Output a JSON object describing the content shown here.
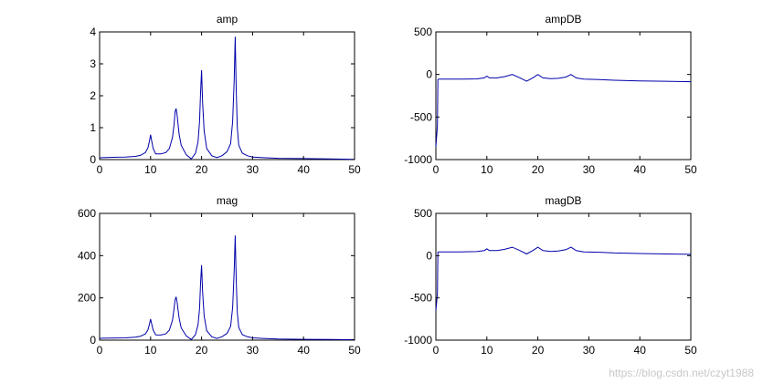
{
  "chart_data": [
    {
      "type": "line",
      "title": "amp",
      "xlim": [
        0,
        50
      ],
      "ylim": [
        0,
        4
      ],
      "xticks": [
        0,
        10,
        20,
        30,
        40,
        50
      ],
      "yticks": [
        0,
        1,
        2,
        3,
        4
      ],
      "grid": false,
      "series": [
        {
          "color": "#0000aa",
          "x": [
            0,
            0.5,
            2,
            5,
            7,
            8,
            9,
            9.5,
            9.8,
            10,
            10.2,
            10.5,
            11,
            12,
            13,
            13.7,
            14.3,
            14.6,
            14.8,
            15,
            15.2,
            15.6,
            16,
            17,
            18,
            18.8,
            19.3,
            19.6,
            19.8,
            20,
            20.2,
            20.5,
            21,
            22,
            23,
            24,
            25,
            25.7,
            26.1,
            26.4,
            26.6,
            26.8,
            27,
            27.3,
            28,
            29,
            30,
            32,
            35,
            40,
            45,
            50
          ],
          "y": [
            0.05,
            0.06,
            0.07,
            0.08,
            0.1,
            0.13,
            0.22,
            0.38,
            0.6,
            0.78,
            0.6,
            0.35,
            0.18,
            0.18,
            0.22,
            0.35,
            0.7,
            1.1,
            1.5,
            1.6,
            1.4,
            0.8,
            0.45,
            0.15,
            0.02,
            0.2,
            0.55,
            1.2,
            2.1,
            2.8,
            1.8,
            0.9,
            0.35,
            0.12,
            0.06,
            0.12,
            0.25,
            0.5,
            1.2,
            2.5,
            3.85,
            2.2,
            1.0,
            0.45,
            0.2,
            0.12,
            0.08,
            0.06,
            0.04,
            0.03,
            0.02,
            0.01
          ]
        }
      ]
    },
    {
      "type": "line",
      "title": "ampDB",
      "xlim": [
        0,
        50
      ],
      "ylim": [
        -1000,
        500
      ],
      "xticks": [
        0,
        10,
        20,
        30,
        40,
        50
      ],
      "yticks": [
        -1000,
        -500,
        0,
        500
      ],
      "grid": false,
      "series": [
        {
          "color": "#0000aa",
          "x": [
            0,
            0.3,
            0.4,
            0.6,
            2,
            5,
            8,
            9.5,
            10,
            10.5,
            12,
            13.5,
            15,
            16.5,
            17.8,
            19,
            20,
            21,
            22.5,
            24,
            25.5,
            26.5,
            27.5,
            29,
            32,
            35,
            40,
            45,
            50
          ],
          "y": [
            -850,
            -600,
            -60,
            -55,
            -55,
            -55,
            -52,
            -40,
            -20,
            -40,
            -40,
            -25,
            0,
            -40,
            -80,
            -40,
            0,
            -40,
            -50,
            -45,
            -30,
            0,
            -40,
            -55,
            -60,
            -68,
            -75,
            -80,
            -85
          ]
        }
      ]
    },
    {
      "type": "line",
      "title": "mag",
      "xlim": [
        0,
        50
      ],
      "ylim": [
        0,
        600
      ],
      "xticks": [
        0,
        10,
        20,
        30,
        40,
        50
      ],
      "yticks": [
        0,
        200,
        400,
        600
      ],
      "grid": false,
      "series": [
        {
          "color": "#0000aa",
          "x": [
            0,
            0.5,
            2,
            5,
            7,
            8,
            9,
            9.5,
            9.8,
            10,
            10.2,
            10.5,
            11,
            12,
            13,
            13.7,
            14.3,
            14.6,
            14.8,
            15,
            15.2,
            15.6,
            16,
            17,
            18,
            18.8,
            19.3,
            19.6,
            19.8,
            20,
            20.2,
            20.5,
            21,
            22,
            23,
            24,
            25,
            25.7,
            26.1,
            26.4,
            26.6,
            26.8,
            27,
            27.3,
            28,
            29,
            30,
            32,
            35,
            40,
            45,
            50
          ],
          "y": [
            8,
            9,
            10,
            11,
            14,
            18,
            30,
            50,
            78,
            100,
            78,
            48,
            25,
            24,
            30,
            48,
            95,
            150,
            190,
            205,
            180,
            105,
            58,
            20,
            3,
            26,
            72,
            150,
            270,
            355,
            230,
            115,
            45,
            16,
            8,
            16,
            32,
            65,
            155,
            330,
            495,
            285,
            130,
            60,
            26,
            16,
            11,
            8,
            5,
            4,
            3,
            2
          ]
        }
      ]
    },
    {
      "type": "line",
      "title": "magDB",
      "xlim": [
        0,
        50
      ],
      "ylim": [
        -1000,
        500
      ],
      "xticks": [
        0,
        10,
        20,
        30,
        40,
        50
      ],
      "yticks": [
        -1000,
        -500,
        0,
        500
      ],
      "grid": false,
      "series": [
        {
          "color": "#0000aa",
          "x": [
            0,
            0.3,
            0.4,
            0.6,
            2,
            5,
            8,
            9.5,
            10,
            10.5,
            12,
            13.5,
            15,
            16.5,
            17.8,
            19,
            20,
            21,
            22.5,
            24,
            25.5,
            26.5,
            27.5,
            29,
            32,
            35,
            40,
            45,
            50
          ],
          "y": [
            -650,
            -450,
            40,
            45,
            45,
            45,
            48,
            60,
            80,
            60,
            60,
            75,
            100,
            60,
            20,
            60,
            100,
            60,
            50,
            55,
            70,
            100,
            60,
            45,
            40,
            32,
            25,
            20,
            15
          ]
        }
      ]
    }
  ],
  "watermark": "https://blog.csdn.net/czyt1988"
}
